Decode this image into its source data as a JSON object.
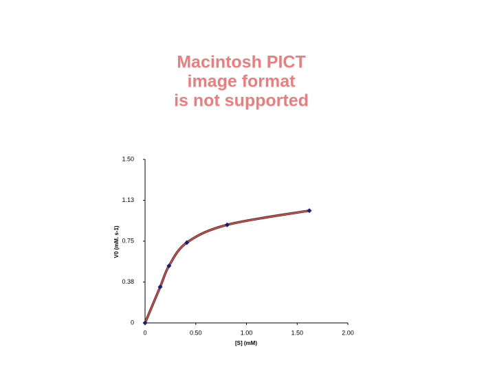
{
  "placeholder": {
    "lines": [
      "Macintosh PICT",
      "image format",
      "is not supported"
    ]
  },
  "chart_data": {
    "type": "line",
    "x_label": "[S] (mM)",
    "y_label": "V0 (mM. s-1)",
    "x": [
      0,
      0.149,
      0.236,
      0.412,
      0.81,
      1.62
    ],
    "series": [
      {
        "values": [
          0,
          0.33,
          0.523,
          0.737,
          0.9,
          1.03
        ],
        "color": "#d9534f",
        "marker_color": "#1c1c78"
      }
    ],
    "xlim": [
      0,
      2
    ],
    "ylim": [
      0,
      1.5
    ],
    "xticks": [
      0,
      {
        "value": 0.5,
        "label": "0.50"
      },
      {
        "value": 1,
        "label": "1.00"
      },
      {
        "value": 1.5,
        "label": "1.50"
      },
      {
        "value": 2,
        "label": "2.00"
      }
    ],
    "yticks": [
      0,
      {
        "value": 0.375,
        "label": "0.38"
      },
      0.75,
      {
        "value": 1.125,
        "label": "1.13"
      },
      {
        "value": 1.5,
        "label": "1.50"
      }
    ],
    "grid": false
  }
}
